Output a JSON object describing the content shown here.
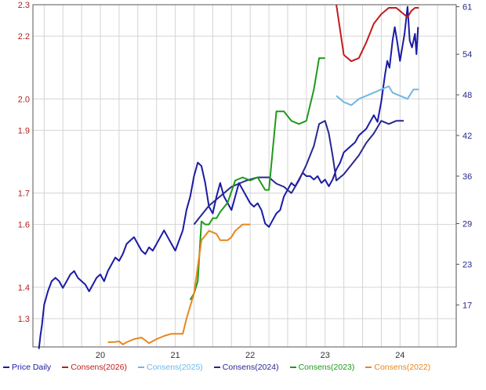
{
  "chart_data": {
    "type": "line",
    "title": "",
    "xlabel": "",
    "ylabel": "",
    "x_ticks": [
      "20",
      "21",
      "22",
      "23",
      "24"
    ],
    "x_range": [
      2019.6,
      2025.25
    ],
    "y_left": {
      "ticks": [
        "1.3",
        "1.4",
        "1.6",
        "1.7",
        "1.9",
        "2.0",
        "2.2",
        "2.3"
      ],
      "tick_values": [
        1.3,
        1.4,
        1.6,
        1.7,
        1.9,
        2.0,
        2.2,
        2.3
      ],
      "range": [
        1.21,
        2.3
      ],
      "color": "#b32020"
    },
    "y_right": {
      "ticks": [
        "17",
        "23",
        "29",
        "36",
        "42",
        "48",
        "54",
        "61"
      ],
      "tick_values": [
        17,
        23,
        29,
        36,
        42,
        48,
        54,
        61
      ],
      "range": [
        10.8,
        61.3
      ],
      "color": "#27288e"
    },
    "grid": true,
    "legend_position": "bottom",
    "series": [
      {
        "name": "Price Daily",
        "color": "#1a1aa6",
        "axis": "right",
        "points": [
          [
            2019.68,
            10.5
          ],
          [
            2019.7,
            12.5
          ],
          [
            2019.72,
            14
          ],
          [
            2019.75,
            17
          ],
          [
            2019.8,
            19
          ],
          [
            2019.85,
            20.5
          ],
          [
            2019.9,
            21
          ],
          [
            2019.95,
            20.5
          ],
          [
            2020.0,
            19.5
          ],
          [
            2020.05,
            20.5
          ],
          [
            2020.1,
            21.5
          ],
          [
            2020.15,
            22
          ],
          [
            2020.2,
            21
          ],
          [
            2020.3,
            20
          ],
          [
            2020.35,
            19
          ],
          [
            2020.4,
            20
          ],
          [
            2020.45,
            21
          ],
          [
            2020.5,
            21.5
          ],
          [
            2020.55,
            20.5
          ],
          [
            2020.6,
            22
          ],
          [
            2020.65,
            23
          ],
          [
            2020.7,
            24
          ],
          [
            2020.75,
            23.5
          ],
          [
            2020.8,
            24.5
          ],
          [
            2020.85,
            26
          ],
          [
            2020.9,
            26.5
          ],
          [
            2020.95,
            27
          ],
          [
            2021.0,
            26
          ],
          [
            2021.05,
            25
          ],
          [
            2021.1,
            24.5
          ],
          [
            2021.15,
            25.5
          ],
          [
            2021.2,
            25
          ],
          [
            2021.25,
            26
          ],
          [
            2021.3,
            27
          ],
          [
            2021.35,
            28
          ],
          [
            2021.4,
            27
          ],
          [
            2021.45,
            26
          ],
          [
            2021.5,
            25
          ],
          [
            2021.55,
            26.5
          ],
          [
            2021.6,
            28
          ],
          [
            2021.65,
            31
          ],
          [
            2021.7,
            33
          ],
          [
            2021.75,
            36
          ],
          [
            2021.8,
            38
          ],
          [
            2021.85,
            37.5
          ],
          [
            2021.9,
            35
          ],
          [
            2021.95,
            31.5
          ],
          [
            2022.0,
            30.5
          ],
          [
            2022.05,
            33
          ],
          [
            2022.1,
            35
          ],
          [
            2022.15,
            33
          ],
          [
            2022.2,
            32
          ],
          [
            2022.25,
            31
          ],
          [
            2022.3,
            33
          ],
          [
            2022.35,
            35
          ],
          [
            2022.4,
            34
          ],
          [
            2022.45,
            33
          ],
          [
            2022.5,
            32
          ],
          [
            2022.55,
            31.5
          ],
          [
            2022.6,
            32
          ],
          [
            2022.65,
            31
          ],
          [
            2022.7,
            29
          ],
          [
            2022.75,
            28.5
          ],
          [
            2022.8,
            29.5
          ],
          [
            2022.85,
            30.5
          ],
          [
            2022.9,
            31
          ],
          [
            2022.95,
            33
          ],
          [
            2023.0,
            34
          ],
          [
            2023.05,
            35
          ],
          [
            2023.1,
            34.5
          ],
          [
            2023.15,
            35.5
          ],
          [
            2023.2,
            36.5
          ],
          [
            2023.25,
            36
          ],
          [
            2023.3,
            36
          ],
          [
            2023.35,
            35.5
          ],
          [
            2023.4,
            36
          ],
          [
            2023.45,
            35
          ],
          [
            2023.5,
            35.5
          ],
          [
            2023.55,
            34.5
          ],
          [
            2023.6,
            35.5
          ],
          [
            2023.65,
            37
          ],
          [
            2023.7,
            38
          ],
          [
            2023.75,
            39.5
          ],
          [
            2023.8,
            40
          ],
          [
            2023.85,
            40.5
          ],
          [
            2023.9,
            41
          ],
          [
            2023.95,
            42
          ],
          [
            2024.0,
            42.5
          ],
          [
            2024.05,
            43
          ],
          [
            2024.1,
            44
          ],
          [
            2024.15,
            45
          ],
          [
            2024.2,
            44
          ],
          [
            2024.25,
            47
          ],
          [
            2024.3,
            51
          ],
          [
            2024.33,
            53
          ],
          [
            2024.36,
            52
          ],
          [
            2024.4,
            56
          ],
          [
            2024.43,
            58
          ],
          [
            2024.46,
            56
          ],
          [
            2024.5,
            53
          ],
          [
            2024.53,
            55
          ],
          [
            2024.56,
            57
          ],
          [
            2024.6,
            61
          ],
          [
            2024.63,
            56
          ],
          [
            2024.66,
            55
          ],
          [
            2024.7,
            57
          ],
          [
            2024.72,
            54
          ],
          [
            2024.74,
            58
          ]
        ]
      },
      {
        "name": "Consens(2026)",
        "color": "#c01c1c",
        "axis": "left",
        "points": [
          [
            2023.65,
            2.3
          ],
          [
            2023.75,
            2.14
          ],
          [
            2023.85,
            2.12
          ],
          [
            2023.95,
            2.13
          ],
          [
            2024.05,
            2.18
          ],
          [
            2024.15,
            2.24
          ],
          [
            2024.25,
            2.27
          ],
          [
            2024.35,
            2.29
          ],
          [
            2024.45,
            2.29
          ],
          [
            2024.55,
            2.27
          ],
          [
            2024.6,
            2.26
          ],
          [
            2024.65,
            2.28
          ],
          [
            2024.7,
            2.29
          ],
          [
            2024.75,
            2.29
          ]
        ]
      },
      {
        "name": "Consens(2025)",
        "color": "#6fb8e8",
        "axis": "left",
        "points": [
          [
            2023.65,
            2.01
          ],
          [
            2023.75,
            1.99
          ],
          [
            2023.85,
            1.98
          ],
          [
            2023.95,
            2.0
          ],
          [
            2024.05,
            2.01
          ],
          [
            2024.15,
            2.02
          ],
          [
            2024.25,
            2.03
          ],
          [
            2024.35,
            2.04
          ],
          [
            2024.4,
            2.02
          ],
          [
            2024.5,
            2.01
          ],
          [
            2024.6,
            2.0
          ],
          [
            2024.68,
            2.03
          ],
          [
            2024.75,
            2.03
          ]
        ]
      },
      {
        "name": "Consens(2024)",
        "color": "#27288e",
        "axis": "left",
        "points": [
          [
            2021.75,
            1.6
          ],
          [
            2021.85,
            1.63
          ],
          [
            2021.95,
            1.66
          ],
          [
            2022.05,
            1.68
          ],
          [
            2022.15,
            1.7
          ],
          [
            2022.25,
            1.72
          ],
          [
            2022.35,
            1.73
          ],
          [
            2022.45,
            1.74
          ],
          [
            2022.6,
            1.75
          ],
          [
            2022.75,
            1.75
          ],
          [
            2022.85,
            1.73
          ],
          [
            2022.95,
            1.72
          ],
          [
            2023.05,
            1.7
          ],
          [
            2023.15,
            1.74
          ],
          [
            2023.25,
            1.79
          ],
          [
            2023.35,
            1.85
          ],
          [
            2023.42,
            1.92
          ],
          [
            2023.5,
            1.93
          ],
          [
            2023.55,
            1.89
          ],
          [
            2023.6,
            1.82
          ],
          [
            2023.65,
            1.74
          ],
          [
            2023.75,
            1.76
          ],
          [
            2023.85,
            1.79
          ],
          [
            2023.95,
            1.82
          ],
          [
            2024.05,
            1.86
          ],
          [
            2024.15,
            1.89
          ],
          [
            2024.25,
            1.93
          ],
          [
            2024.35,
            1.92
          ],
          [
            2024.45,
            1.93
          ],
          [
            2024.55,
            1.93
          ]
        ]
      },
      {
        "name": "Consens(2023)",
        "color": "#1e9a1e",
        "axis": "left",
        "points": [
          [
            2021.7,
            1.36
          ],
          [
            2021.75,
            1.38
          ],
          [
            2021.8,
            1.42
          ],
          [
            2021.85,
            1.61
          ],
          [
            2021.9,
            1.6
          ],
          [
            2021.95,
            1.6
          ],
          [
            2022.0,
            1.62
          ],
          [
            2022.05,
            1.62
          ],
          [
            2022.1,
            1.64
          ],
          [
            2022.2,
            1.67
          ],
          [
            2022.3,
            1.74
          ],
          [
            2022.4,
            1.75
          ],
          [
            2022.5,
            1.74
          ],
          [
            2022.6,
            1.75
          ],
          [
            2022.7,
            1.71
          ],
          [
            2022.75,
            1.71
          ],
          [
            2022.85,
            1.96
          ],
          [
            2022.95,
            1.96
          ],
          [
            2023.05,
            1.93
          ],
          [
            2023.15,
            1.92
          ],
          [
            2023.25,
            1.93
          ],
          [
            2023.35,
            2.03
          ],
          [
            2023.42,
            2.13
          ],
          [
            2023.5,
            2.13
          ]
        ]
      },
      {
        "name": "Consens(2022)",
        "color": "#e8861e",
        "axis": "left",
        "points": [
          [
            2020.6,
            1.225
          ],
          [
            2020.7,
            1.226
          ],
          [
            2020.75,
            1.228
          ],
          [
            2020.8,
            1.218
          ],
          [
            2020.85,
            1.225
          ],
          [
            2020.95,
            1.235
          ],
          [
            2021.05,
            1.24
          ],
          [
            2021.15,
            1.222
          ],
          [
            2021.25,
            1.235
          ],
          [
            2021.35,
            1.245
          ],
          [
            2021.45,
            1.252
          ],
          [
            2021.55,
            1.252
          ],
          [
            2021.6,
            1.252
          ],
          [
            2021.65,
            1.3
          ],
          [
            2021.75,
            1.38
          ],
          [
            2021.85,
            1.55
          ],
          [
            2021.95,
            1.58
          ],
          [
            2022.05,
            1.57
          ],
          [
            2022.1,
            1.55
          ],
          [
            2022.2,
            1.55
          ],
          [
            2022.25,
            1.56
          ],
          [
            2022.3,
            1.58
          ],
          [
            2022.4,
            1.6
          ],
          [
            2022.5,
            1.6
          ]
        ]
      }
    ]
  }
}
